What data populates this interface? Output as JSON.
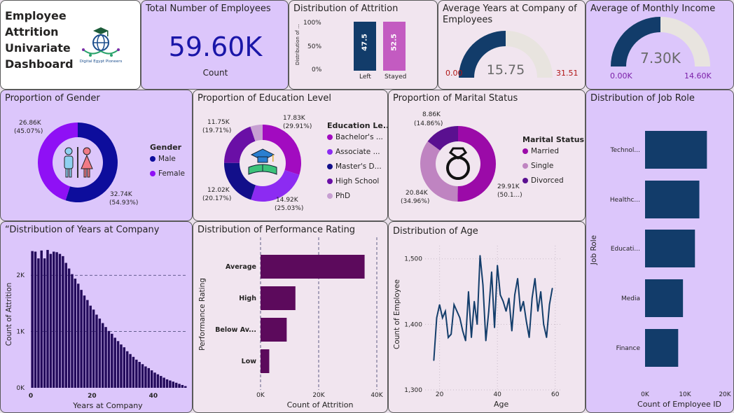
{
  "dashboard": {
    "title": "Employee Attrition Univariate Dashboard",
    "logo_text": "Digital Egypt Pioneers",
    "logo_icon": "graduation-globe-icon"
  },
  "kpi_total": {
    "title": "Total Number of Employees",
    "value": "59.60K",
    "sub": "Count"
  },
  "colors": {
    "navy": "#123c6a",
    "purple": "#8a0aa8",
    "violet": "#8f33f2",
    "dark_blue": "#17198a",
    "dark_purple": "#5c0a5c",
    "mauve": "#c46ccf",
    "light_mauve": "#c395c6",
    "grey_arc": "#e8e4df",
    "line_blue": "#143e6b",
    "royal": "#0d0d9c",
    "indigo": "#240b5c"
  },
  "attrition": {
    "title": "Distribution of Attrition",
    "y_axis": "Distribution of ...",
    "ticks": [
      "100%",
      "50%",
      "0%"
    ],
    "bars": [
      {
        "label": "Left",
        "value": 47.5,
        "text": "47.5",
        "color": "#123c6a"
      },
      {
        "label": "Stayed",
        "value": 52.5,
        "text": "52.5",
        "color": "#c35bc1"
      }
    ]
  },
  "years_gauge": {
    "title": "Average Years at Company of Employees",
    "value": "15.75",
    "min": "0.00",
    "max": "31.51",
    "fraction": 0.5
  },
  "income_gauge": {
    "title": "Average of Monthly Income",
    "value": "7.30K",
    "min": "0.00K",
    "max": "14.60K",
    "fraction": 0.5
  },
  "gender": {
    "title": "Proportion of Gender",
    "legend_title": "Gender",
    "items": [
      {
        "name": "Male",
        "value": 32.74,
        "label": "32.74K",
        "pct": "(54.93%)",
        "color": "#0d0d9c"
      },
      {
        "name": "Female",
        "value": 26.86,
        "label": "26.86K",
        "pct": "(45.07%)",
        "color": "#8f10f5"
      }
    ]
  },
  "education": {
    "title": "Proportion of Education Level",
    "legend_title": "Education Le...",
    "items": [
      {
        "name": "Bachelor's ...",
        "value": 17.83,
        "label": "17.83K",
        "pct": "(29.91%)",
        "color": "#a20bc0"
      },
      {
        "name": "Associate ...",
        "value": 14.92,
        "label": "14.92K",
        "pct": "(25.03%)",
        "color": "#8c2bf2"
      },
      {
        "name": "Master's D...",
        "value": 12.02,
        "label": "12.02K",
        "pct": "(20.17%)",
        "color": "#120f8a"
      },
      {
        "name": "High School",
        "value": 11.75,
        "label": "11.75K",
        "pct": "(19.71%)",
        "color": "#6a0fa6"
      },
      {
        "name": "PhD",
        "value": 3.08,
        "label": "",
        "pct": "",
        "color": "#c79fd2"
      }
    ]
  },
  "marital": {
    "title": "Proportion of Marital Status",
    "legend_title": "Marital Status",
    "items": [
      {
        "name": "Married",
        "value": 29.91,
        "label": "29.91K",
        "pct": "(50.1...)",
        "color": "#9b0aa8"
      },
      {
        "name": "Single",
        "value": 20.84,
        "label": "20.84K",
        "pct": "(34.96%)",
        "color": "#bf84c1"
      },
      {
        "name": "Divorced",
        "value": 8.86,
        "label": "8.86K",
        "pct": "(14.86%)",
        "color": "#5a1090"
      }
    ]
  },
  "job_role": {
    "title": "Distribution of Job Role",
    "y_axis": "Job Role",
    "x_axis": "Count of Employee ID",
    "x_ticks": [
      "0K",
      "10K",
      "20K"
    ],
    "color": "#123c6a",
    "chart_data": {
      "type": "bar",
      "categories": [
        "Technol...",
        "Healthc...",
        "Educati...",
        "Media",
        "Finance"
      ],
      "values": [
        15500,
        13600,
        12500,
        9500,
        8300
      ],
      "xlim": [
        0,
        20000
      ]
    }
  },
  "years_company": {
    "title": "“Distribution of Years at Company",
    "y_axis": "Count of Attrition",
    "x_axis": "Years at Company",
    "y_ticks": [
      "2K",
      "1K",
      "0K"
    ],
    "x_ticks": [
      "0",
      "20",
      "40"
    ],
    "color": "#240b5c",
    "chart_data": {
      "type": "bar",
      "x": [
        1,
        2,
        3,
        4,
        5,
        6,
        7,
        8,
        9,
        10,
        11,
        12,
        13,
        14,
        15,
        16,
        17,
        18,
        19,
        20,
        21,
        22,
        23,
        24,
        25,
        26,
        27,
        28,
        29,
        30,
        31,
        32,
        33,
        34,
        35,
        36,
        37,
        38,
        39,
        40,
        41,
        42,
        43,
        44,
        45,
        46,
        47,
        48,
        49,
        50,
        51
      ],
      "values": [
        2430,
        2420,
        2300,
        2440,
        2300,
        2450,
        2380,
        2420,
        2410,
        2380,
        2340,
        2220,
        2120,
        2020,
        1940,
        1850,
        1740,
        1640,
        1560,
        1460,
        1390,
        1300,
        1230,
        1150,
        1080,
        1010,
        960,
        890,
        830,
        770,
        720,
        650,
        600,
        550,
        500,
        460,
        420,
        380,
        350,
        310,
        270,
        240,
        210,
        180,
        150,
        130,
        110,
        90,
        70,
        50,
        30
      ],
      "ylim": [
        0,
        2600
      ]
    }
  },
  "performance": {
    "title": "Distribution of Performance Rating",
    "y_axis": "Performance Rating",
    "x_axis": "Count of Attrition",
    "x_ticks": [
      "0K",
      "20K",
      "40K"
    ],
    "color": "#5c0a5c",
    "chart_data": {
      "type": "bar",
      "categories": [
        "Average",
        "High",
        "Below Av...",
        "Low"
      ],
      "values": [
        35800,
        12000,
        9000,
        3000
      ],
      "xlim": [
        0,
        40000
      ]
    }
  },
  "age": {
    "title": "Distribution of Age",
    "y_axis": "Count of Employee",
    "x_axis": "Age",
    "y_ticks": [
      "1,500",
      "1,400",
      "1,300"
    ],
    "x_ticks": [
      "20",
      "40",
      "60"
    ],
    "color": "#143e6b",
    "chart_data": {
      "type": "line",
      "x": [
        18,
        19,
        20,
        21,
        22,
        23,
        24,
        25,
        26,
        27,
        28,
        29,
        30,
        31,
        32,
        33,
        34,
        35,
        36,
        37,
        38,
        39,
        40,
        41,
        42,
        43,
        44,
        45,
        46,
        47,
        48,
        49,
        50,
        51,
        52,
        53,
        54,
        55,
        56,
        57,
        58,
        59
      ],
      "values": [
        1345,
        1410,
        1430,
        1410,
        1420,
        1380,
        1385,
        1430,
        1420,
        1410,
        1390,
        1375,
        1450,
        1380,
        1435,
        1400,
        1505,
        1460,
        1375,
        1420,
        1480,
        1395,
        1490,
        1445,
        1435,
        1420,
        1440,
        1390,
        1445,
        1470,
        1420,
        1435,
        1405,
        1380,
        1440,
        1470,
        1420,
        1450,
        1400,
        1380,
        1430,
        1455
      ],
      "ylim": [
        1300,
        1520
      ],
      "xlim": [
        15,
        62
      ]
    }
  }
}
